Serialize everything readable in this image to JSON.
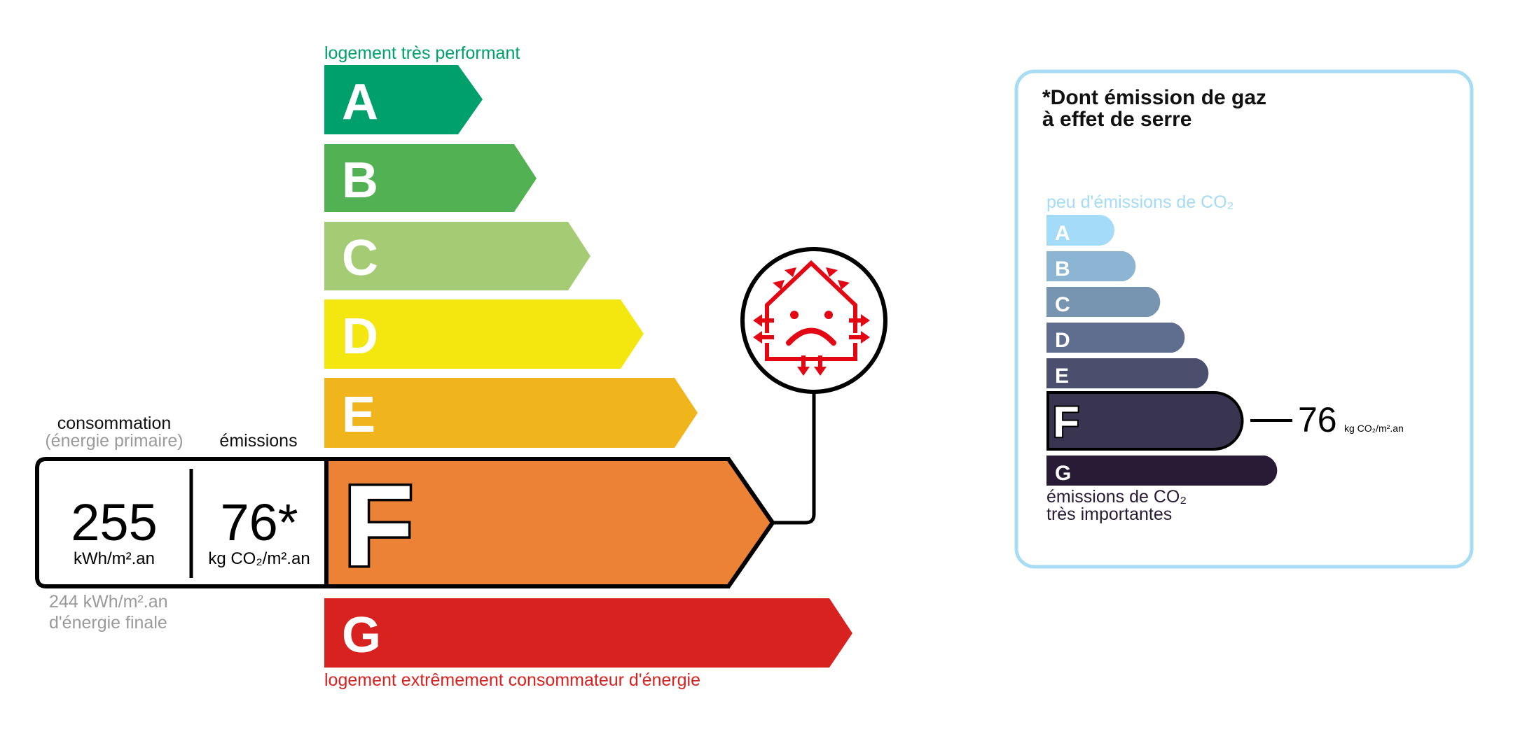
{
  "energy": {
    "top_label": "logement très performant",
    "bottom_label": "logement extrêmement consommateur d'énergie",
    "classes": [
      {
        "letter": "A",
        "color": "#00a06d"
      },
      {
        "letter": "B",
        "color": "#52b153"
      },
      {
        "letter": "C",
        "color": "#a5cc74"
      },
      {
        "letter": "D",
        "color": "#f4e70f"
      },
      {
        "letter": "E",
        "color": "#f0b41c"
      },
      {
        "letter": "F",
        "color": "#eb8235"
      },
      {
        "letter": "G",
        "color": "#d7221f"
      }
    ],
    "current_class": "F",
    "consumption_label": "consommation",
    "consumption_sublabel": "(énergie primaire)",
    "emissions_label": "émissions",
    "consumption_value": "255",
    "consumption_unit": "kWh/m².an",
    "emissions_value": "76*",
    "emissions_unit": "kg CO₂/m².an",
    "final_energy_value": "244 kWh/m².an",
    "final_energy_label": "d'énergie finale",
    "icon": "house-heat-loss-sad-face-icon"
  },
  "ges": {
    "title_line1": "*Dont émission de gaz",
    "title_line2": "à effet de serre",
    "top_label": "peu d'émissions de CO₂",
    "bottom_label_line1": "émissions de CO₂",
    "bottom_label_line2": "très importantes",
    "classes": [
      {
        "letter": "A",
        "color": "#a4dbf8"
      },
      {
        "letter": "B",
        "color": "#8cb4d3"
      },
      {
        "letter": "C",
        "color": "#7794b1"
      },
      {
        "letter": "D",
        "color": "#5f6e8e"
      },
      {
        "letter": "E",
        "color": "#4c4e6e"
      },
      {
        "letter": "F",
        "color": "#393551"
      },
      {
        "letter": "G",
        "color": "#281b35"
      }
    ],
    "current_class": "F",
    "value": "76",
    "unit": "kg CO₂/m².an",
    "border_color": "#a8dcf5"
  }
}
